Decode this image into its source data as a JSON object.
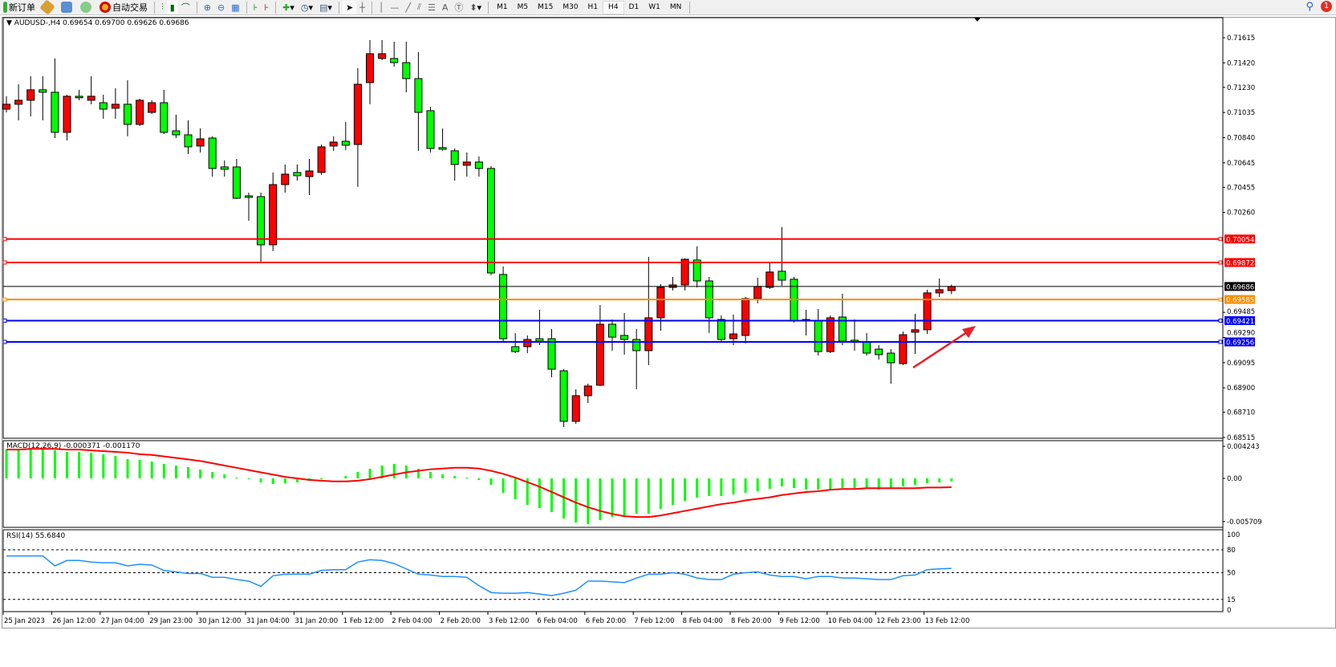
{
  "toolbar": {
    "new_order": "新订单",
    "auto_trading": "自动交易",
    "timeframes": [
      "M1",
      "M5",
      "M15",
      "M30",
      "H1",
      "H4",
      "D1",
      "W1",
      "MN"
    ],
    "active_timeframe": "H4",
    "notification_count": "1",
    "icons": [
      "new-order-icon",
      "history-center-icon",
      "navigator-icon",
      "signal-icon",
      "auto-trading-icon",
      "bar-chart-icon",
      "candlestick-icon",
      "line-chart-icon",
      "zoom-in-icon",
      "zoom-out-icon",
      "tile-windows-icon",
      "chart-shift-icon",
      "autoscroll-icon",
      "indicators-icon",
      "periods-icon",
      "templates-icon",
      "cursor-icon",
      "crosshair-icon",
      "vertical-line-icon",
      "horizontal-line-icon",
      "trendline-icon",
      "equidistant-channel-icon",
      "fibonacci-icon",
      "text-icon",
      "text-label-icon",
      "arrows-icon",
      "search-icon",
      "notification-icon"
    ],
    "text_tool": "A"
  },
  "chart": {
    "header": "AUDUSD-,H4  0.69654 0.69700 0.69626 0.69686",
    "colors": {
      "up": "#ff0000",
      "down": "#00ff00",
      "bid": "#000000"
    },
    "price_ticks": [
      "0.71615",
      "0.71420",
      "0.71230",
      "0.71035",
      "0.70840",
      "0.70645",
      "0.70455",
      "0.70260",
      "0.69485",
      "0.69290",
      "0.69095",
      "0.68900",
      "0.68710",
      "0.68515"
    ],
    "levels": [
      {
        "price": "0.70054",
        "color": "#ff0000"
      },
      {
        "price": "0.69872",
        "color": "#ff0000"
      },
      {
        "price": "0.69686",
        "color": "#000000"
      },
      {
        "price": "0.69585",
        "color": "#ff8c00"
      },
      {
        "price": "0.69421",
        "color": "#0000ff"
      },
      {
        "price": "0.69256",
        "color": "#0000ff"
      }
    ],
    "time_labels": [
      "25 Jan 2023",
      "26 Jan 12:00",
      "27 Jan 04:00",
      "29 Jan 23:00",
      "30 Jan 12:00",
      "31 Jan 04:00",
      "31 Jan 20:00",
      "1 Feb 12:00",
      "2 Feb 04:00",
      "2 Feb 20:00",
      "3 Feb 12:00",
      "6 Feb 04:00",
      "6 Feb 20:00",
      "7 Feb 12:00",
      "8 Feb 04:00",
      "8 Feb 20:00",
      "9 Feb 12:00",
      "10 Feb 04:00",
      "12 Feb 23:00",
      "13 Feb 12:00"
    ],
    "annotation_arrow_color": "#e8202a"
  },
  "chart_data": [
    {
      "type": "candlestick",
      "title": "AUDUSD-,H4",
      "ylim": [
        0.68515,
        0.71615
      ],
      "ohlc": [
        [
          0.71061,
          0.71161,
          0.71036,
          0.71099
        ],
        [
          0.71099,
          0.71254,
          0.70974,
          0.7113
        ],
        [
          0.7113,
          0.71317,
          0.71005,
          0.71211
        ],
        [
          0.71211,
          0.71317,
          0.70974,
          0.71192
        ],
        [
          0.71192,
          0.71454,
          0.70837,
          0.70881
        ],
        [
          0.70881,
          0.71173,
          0.70819,
          0.71161
        ],
        [
          0.71161,
          0.71211,
          0.7113,
          0.71149
        ],
        [
          0.7113,
          0.71317,
          0.71099,
          0.71161
        ],
        [
          0.71111,
          0.71173,
          0.70987,
          0.71061
        ],
        [
          0.71068,
          0.71223,
          0.70987,
          0.71099
        ],
        [
          0.71099,
          0.71285,
          0.7085,
          0.70943
        ],
        [
          0.70943,
          0.71142,
          0.70931,
          0.7113
        ],
        [
          0.71036,
          0.7113,
          0.71024,
          0.71111
        ],
        [
          0.71111,
          0.71211,
          0.70868,
          0.70881
        ],
        [
          0.70893,
          0.71018,
          0.70837,
          0.70862
        ],
        [
          0.70862,
          0.70974,
          0.70713,
          0.70769
        ],
        [
          0.70775,
          0.70912,
          0.70725,
          0.70831
        ],
        [
          0.70837,
          0.7085,
          0.70538,
          0.70601
        ],
        [
          0.70613,
          0.70663,
          0.70538,
          0.70595
        ],
        [
          0.70613,
          0.70675,
          0.70364,
          0.7037
        ],
        [
          0.70389,
          0.70414,
          0.70196,
          0.70377
        ],
        [
          0.70383,
          0.70414,
          0.69866,
          0.70009
        ],
        [
          0.70009,
          0.7057,
          0.6996,
          0.70476
        ],
        [
          0.70476,
          0.70632,
          0.70414,
          0.70557
        ],
        [
          0.7057,
          0.70632,
          0.70507,
          0.70545
        ],
        [
          0.70538,
          0.70675,
          0.70395,
          0.70582
        ],
        [
          0.7057,
          0.70787,
          0.70551,
          0.70769
        ],
        [
          0.70775,
          0.7085,
          0.70738,
          0.70806
        ],
        [
          0.70812,
          0.70962,
          0.70744,
          0.70781
        ],
        [
          0.70787,
          0.71379,
          0.70458,
          0.71254
        ],
        [
          0.71267,
          0.71597,
          0.71099,
          0.71491
        ],
        [
          0.71454,
          0.71597,
          0.71441,
          0.71491
        ],
        [
          0.71454,
          0.71584,
          0.71391,
          0.71422
        ],
        [
          0.71422,
          0.71584,
          0.71192,
          0.71298
        ],
        [
          0.71298,
          0.71503,
          0.70738,
          0.71036
        ],
        [
          0.71049,
          0.7108,
          0.70725,
          0.70756
        ],
        [
          0.70763,
          0.70912,
          0.70738,
          0.7075
        ],
        [
          0.70738,
          0.70756,
          0.70507,
          0.70632
        ],
        [
          0.70626,
          0.70725,
          0.70538,
          0.70651
        ],
        [
          0.70651,
          0.70694,
          0.70538,
          0.70601
        ],
        [
          0.70601,
          0.70619,
          0.69773,
          0.69791
        ],
        [
          0.69779,
          0.69841,
          0.69262,
          0.69281
        ],
        [
          0.69219,
          0.69325,
          0.69169,
          0.69181
        ],
        [
          0.69219,
          0.69306,
          0.69169,
          0.69275
        ],
        [
          0.69281,
          0.69505,
          0.69231,
          0.69262
        ],
        [
          0.69281,
          0.69356,
          0.68982,
          0.69044
        ],
        [
          0.69032,
          0.69044,
          0.68596,
          0.6864
        ],
        [
          0.6864,
          0.68889,
          0.68621,
          0.68839
        ],
        [
          0.68839,
          0.68932,
          0.68783,
          0.68914
        ],
        [
          0.6892,
          0.69542,
          0.68914,
          0.69393
        ],
        [
          0.69393,
          0.6943,
          0.69188,
          0.69293
        ],
        [
          0.69306,
          0.6948,
          0.69157,
          0.69275
        ],
        [
          0.69275,
          0.69356,
          0.68889,
          0.69188
        ],
        [
          0.69188,
          0.69916,
          0.69076,
          0.69443
        ],
        [
          0.69443,
          0.69704,
          0.69343,
          0.69679
        ],
        [
          0.69679,
          0.6976,
          0.69655,
          0.69698
        ],
        [
          0.69698,
          0.69904,
          0.69655,
          0.69897
        ],
        [
          0.69891,
          0.69997,
          0.69679,
          0.69729
        ],
        [
          0.69729,
          0.6976,
          0.69325,
          0.69443
        ],
        [
          0.6943,
          0.69462,
          0.69262,
          0.69275
        ],
        [
          0.69281,
          0.69468,
          0.69231,
          0.69318
        ],
        [
          0.69306,
          0.69605,
          0.69244,
          0.69592
        ],
        [
          0.69592,
          0.69754,
          0.69555,
          0.69686
        ],
        [
          0.69679,
          0.69866,
          0.69667,
          0.69798
        ],
        [
          0.69804,
          0.70146,
          0.69692,
          0.69735
        ],
        [
          0.69742,
          0.6976,
          0.69406,
          0.69418
        ],
        [
          0.6943,
          0.69505,
          0.69306,
          0.69418
        ],
        [
          0.69418,
          0.69511,
          0.6915,
          0.69181
        ],
        [
          0.69181,
          0.69462,
          0.69169,
          0.69443
        ],
        [
          0.69449,
          0.6963,
          0.69231,
          0.69262
        ],
        [
          0.69269,
          0.6943,
          0.69188,
          0.69256
        ],
        [
          0.69256,
          0.69325,
          0.6915,
          0.69169
        ],
        [
          0.692,
          0.69231,
          0.69119,
          0.69157
        ],
        [
          0.69169,
          0.692,
          0.68932,
          0.69094
        ],
        [
          0.69088,
          0.69337,
          0.69076,
          0.69312
        ],
        [
          0.69331,
          0.69474,
          0.69163,
          0.6935
        ],
        [
          0.6935,
          0.69661,
          0.69318,
          0.69636
        ],
        [
          0.69636,
          0.69748,
          0.69605,
          0.69661
        ],
        [
          0.69654,
          0.697,
          0.69626,
          0.69686
        ]
      ]
    },
    {
      "type": "bar+line",
      "label": "MACD(12,26,9) -0.000371 -0.001170",
      "ylim": [
        -0.005709,
        0.004243
      ],
      "ticks": [
        "0.004243",
        "0.00",
        "-0.005709"
      ],
      "histogram": [
        0.00382,
        0.00392,
        0.00392,
        0.00382,
        0.00371,
        0.0035,
        0.0035,
        0.00339,
        0.00318,
        0.00297,
        0.00254,
        0.00244,
        0.00223,
        0.00191,
        0.0017,
        0.00148,
        0.00117,
        0.00085,
        0.00053,
        0.00011,
        -0.00011,
        -0.00053,
        -0.00074,
        -0.00064,
        -0.00053,
        -0.00032,
        -0.00011,
        0,
        0.00032,
        0.00085,
        0.00127,
        0.0017,
        0.00191,
        0.0017,
        0.00127,
        0.00085,
        0.00053,
        0.00032,
        0.00011,
        -0.00021,
        -0.00085,
        -0.00191,
        -0.00276,
        -0.0035,
        -0.00392,
        -0.00445,
        -0.0053,
        -0.00583,
        -0.00604,
        -0.00551,
        -0.00509,
        -0.00488,
        -0.00466,
        -0.00466,
        -0.00403,
        -0.0035,
        -0.00297,
        -0.00254,
        -0.00233,
        -0.00233,
        -0.00212,
        -0.00191,
        -0.0017,
        -0.00138,
        -0.00106,
        -0.00127,
        -0.00148,
        -0.00148,
        -0.00138,
        -0.00127,
        -0.00127,
        -0.00138,
        -0.00148,
        -0.00138,
        -0.00106,
        -0.00085,
        -0.00064,
        -0.00053,
        -0.000371
      ],
      "signal": [
        0.0038,
        0.0038,
        0.0039,
        0.0039,
        0.0039,
        0.0038,
        0.0038,
        0.0037,
        0.0036,
        0.0035,
        0.0034,
        0.0032,
        0.0031,
        0.0029,
        0.0027,
        0.0025,
        0.0023,
        0.002,
        0.0017,
        0.0014,
        0.0011,
        0.0008,
        0.0005,
        0.0002,
        0.0,
        -0.0002,
        -0.0003,
        -0.0004,
        -0.0004,
        -0.0003,
        -0.0001,
        0.0002,
        0.0005,
        0.0008,
        0.001,
        0.0012,
        0.0013,
        0.0014,
        0.0014,
        0.0013,
        0.001,
        0.0006,
        0.0001,
        -0.0005,
        -0.0011,
        -0.0018,
        -0.0025,
        -0.0032,
        -0.0038,
        -0.0043,
        -0.0047,
        -0.005,
        -0.0051,
        -0.0051,
        -0.0049,
        -0.0046,
        -0.0043,
        -0.004,
        -0.0037,
        -0.0034,
        -0.0032,
        -0.0029,
        -0.0027,
        -0.0025,
        -0.0022,
        -0.002,
        -0.0018,
        -0.0017,
        -0.0015,
        -0.0014,
        -0.0014,
        -0.0013,
        -0.0013,
        -0.0013,
        -0.0013,
        -0.0013,
        -0.0012,
        -0.0012,
        -0.00117
      ],
      "colors": {
        "histogram": "#00ff00",
        "signal": "#ff0000"
      }
    },
    {
      "type": "line",
      "label": "RSI(14) 55.6840",
      "ylim": [
        0,
        100
      ],
      "ticks": [
        "100",
        "80",
        "50",
        "15",
        "0"
      ],
      "levels": [
        80,
        50,
        15
      ],
      "values": [
        72,
        72,
        72,
        72,
        59,
        66,
        66,
        64,
        63,
        63,
        59,
        61,
        60,
        53,
        51,
        49,
        49,
        44,
        44,
        41,
        39,
        32,
        46,
        48,
        48,
        48,
        53,
        54,
        54,
        64,
        67,
        66,
        62,
        55,
        48,
        47,
        45,
        45,
        44,
        33,
        24,
        23,
        23,
        24,
        22,
        20,
        23,
        27,
        39,
        39,
        38,
        37,
        43,
        48,
        48,
        50,
        48,
        43,
        41,
        41,
        48,
        50,
        51,
        47,
        45,
        45,
        42,
        45,
        45,
        43,
        43,
        42,
        41,
        41,
        46,
        47,
        54,
        55,
        55.684
      ],
      "color": "#1e90ff"
    }
  ]
}
